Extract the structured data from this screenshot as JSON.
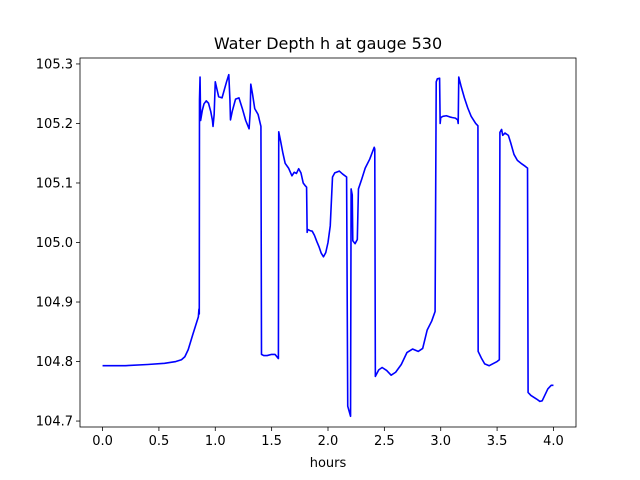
{
  "chart_data": {
    "type": "line",
    "title": "Water Depth h at gauge 530",
    "xlabel": "hours",
    "ylabel": "",
    "xlim": [
      -0.2,
      4.2
    ],
    "ylim": [
      104.69,
      105.31
    ],
    "xticks": [
      0.0,
      0.5,
      1.0,
      1.5,
      2.0,
      2.5,
      3.0,
      3.5,
      4.0
    ],
    "xtick_labels": [
      "0.0",
      "0.5",
      "1.0",
      "1.5",
      "2.0",
      "2.5",
      "3.0",
      "3.5",
      "4.0"
    ],
    "yticks": [
      104.7,
      104.8,
      104.9,
      105.0,
      105.1,
      105.2,
      105.3
    ],
    "ytick_labels": [
      "104.7",
      "104.8",
      "104.9",
      "105.0",
      "105.1",
      "105.2",
      "105.3"
    ],
    "grid": false,
    "series": [
      {
        "color": "#0000ff",
        "x": [
          0.0,
          0.2,
          0.4,
          0.55,
          0.65,
          0.7,
          0.73,
          0.76,
          0.8,
          0.85,
          0.855,
          0.858,
          0.86,
          0.865,
          0.87,
          0.885,
          0.9,
          0.92,
          0.94,
          0.96,
          0.975,
          0.98,
          0.99,
          1.0,
          1.03,
          1.06,
          1.1,
          1.12,
          1.13,
          1.135,
          1.15,
          1.18,
          1.21,
          1.24,
          1.27,
          1.3,
          1.31,
          1.315,
          1.33,
          1.35,
          1.38,
          1.405,
          1.41,
          1.43,
          1.46,
          1.5,
          1.53,
          1.56,
          1.563,
          1.58,
          1.6,
          1.62,
          1.65,
          1.68,
          1.7,
          1.72,
          1.74,
          1.76,
          1.78,
          1.8,
          1.81,
          1.815,
          1.82,
          1.84,
          1.86,
          1.88,
          1.9,
          1.92,
          1.94,
          1.96,
          1.98,
          2.0,
          2.02,
          2.04,
          2.06,
          2.1,
          2.13,
          2.165,
          2.175,
          2.2,
          2.205,
          2.215,
          2.22,
          2.24,
          2.26,
          2.27,
          2.3,
          2.33,
          2.37,
          2.41,
          2.415,
          2.42,
          2.45,
          2.48,
          2.52,
          2.56,
          2.6,
          2.65,
          2.7,
          2.75,
          2.8,
          2.84,
          2.88,
          2.92,
          2.95,
          2.96,
          2.97,
          2.99,
          2.995,
          3.0,
          3.02,
          3.05,
          3.08,
          3.1,
          3.13,
          3.15,
          3.155,
          3.16,
          3.18,
          3.21,
          3.24,
          3.27,
          3.31,
          3.33,
          3.332,
          3.36,
          3.39,
          3.43,
          3.47,
          3.5,
          3.52,
          3.525,
          3.54,
          3.55,
          3.57,
          3.6,
          3.62,
          3.65,
          3.68,
          3.72,
          3.75,
          3.77,
          3.775,
          3.8,
          3.85,
          3.88,
          3.9,
          3.92,
          3.95,
          3.98,
          4.0
        ],
        "y": [
          104.793,
          104.793,
          104.795,
          104.797,
          104.8,
          104.803,
          104.808,
          104.82,
          104.845,
          104.875,
          104.888,
          104.88,
          105.24,
          105.278,
          105.205,
          105.222,
          105.233,
          105.238,
          105.234,
          105.22,
          105.205,
          105.195,
          105.215,
          105.27,
          105.245,
          105.243,
          105.27,
          105.282,
          105.24,
          105.206,
          105.22,
          105.241,
          105.243,
          105.225,
          105.205,
          105.191,
          105.22,
          105.266,
          105.25,
          105.225,
          105.215,
          105.195,
          104.812,
          104.81,
          104.81,
          104.812,
          104.812,
          104.805,
          105.186,
          105.17,
          105.15,
          105.133,
          105.125,
          105.112,
          105.118,
          105.116,
          105.124,
          105.117,
          105.1,
          105.095,
          105.093,
          105.017,
          105.022,
          105.02,
          105.019,
          105.012,
          105.002,
          104.993,
          104.982,
          104.976,
          104.983,
          105.0,
          105.028,
          105.11,
          105.117,
          105.12,
          105.115,
          105.11,
          104.725,
          104.708,
          105.09,
          105.08,
          105.003,
          104.998,
          105.005,
          105.09,
          105.107,
          105.125,
          105.14,
          105.16,
          105.157,
          104.775,
          104.786,
          104.79,
          104.785,
          104.777,
          104.782,
          104.795,
          104.815,
          104.821,
          104.817,
          104.822,
          104.853,
          104.868,
          104.884,
          105.27,
          105.275,
          105.276,
          105.2,
          105.21,
          105.212,
          105.213,
          105.211,
          105.21,
          105.209,
          105.206,
          105.2,
          105.278,
          105.263,
          105.243,
          105.226,
          105.212,
          105.2,
          105.196,
          104.817,
          104.806,
          104.796,
          104.793,
          104.797,
          104.8,
          104.803,
          105.185,
          105.19,
          105.18,
          105.184,
          105.18,
          105.168,
          105.148,
          105.138,
          105.132,
          105.128,
          105.125,
          104.748,
          104.743,
          104.737,
          104.733,
          104.734,
          104.742,
          104.754,
          104.76,
          104.76
        ]
      }
    ]
  }
}
